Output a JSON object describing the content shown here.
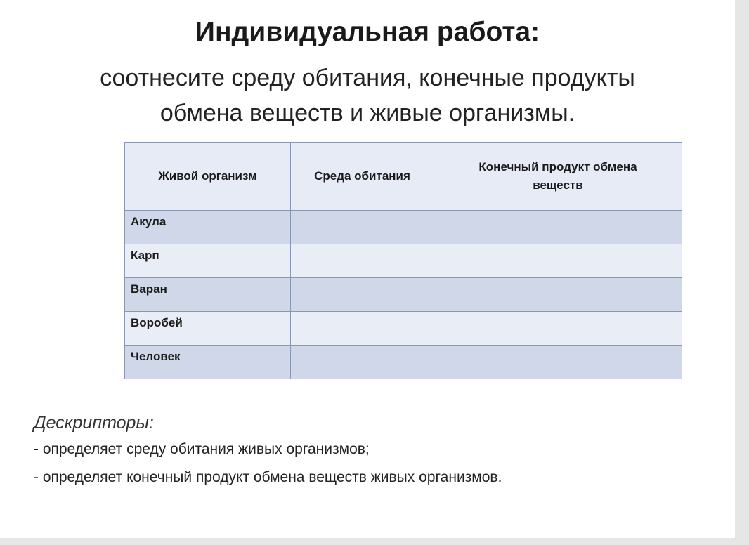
{
  "title": "Индивидуальная работа:",
  "subtitle_lines": [
    "соотнесите среду обитания, конечные продукты",
    "обмена веществ и живые организмы."
  ],
  "table": {
    "headers": [
      "Живой организм",
      "Среда обитания",
      "Конечный продукт обмена веществ"
    ],
    "rows": [
      [
        "Акула",
        "",
        ""
      ],
      [
        "Карп",
        "",
        ""
      ],
      [
        "Варан",
        "",
        ""
      ],
      [
        "Воробей",
        "",
        ""
      ],
      [
        "Человек",
        "",
        ""
      ]
    ]
  },
  "descriptors": {
    "heading": "Дескрипторы:",
    "items": [
      "- определяет среду обитания живых организмов;",
      "- определяет конечный продукт обмена веществ живых организмов."
    ]
  }
}
